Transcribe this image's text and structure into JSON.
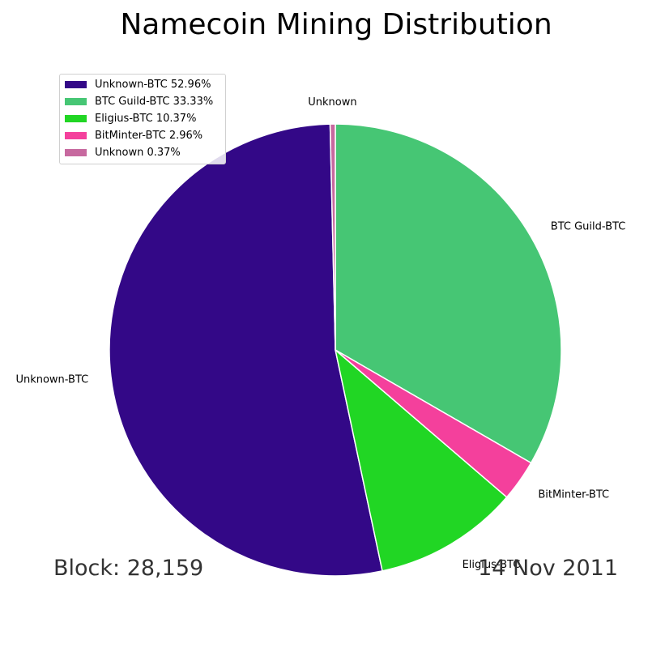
{
  "chart_data": {
    "type": "pie",
    "title": "Namecoin Mining Distribution",
    "slices": [
      {
        "label": "Unknown-BTC",
        "legend": "Unknown-BTC 52.96%",
        "value": 52.96,
        "color": "#330887"
      },
      {
        "label": "BTC Guild-BTC",
        "legend": "BTC Guild-BTC 33.33%",
        "value": 33.33,
        "color": "#46C674"
      },
      {
        "label": "Eligius-BTC",
        "legend": "Eligius-BTC 10.37%",
        "value": 10.37,
        "color": "#21D624"
      },
      {
        "label": "BitMinter-BTC",
        "legend": "BitMinter-BTC 2.96%",
        "value": 2.96,
        "color": "#F4409C"
      },
      {
        "label": "Unknown",
        "legend": "Unknown 0.37%",
        "value": 0.37,
        "color": "#C7699F"
      }
    ],
    "legend_position": "top-left",
    "start": "top",
    "direction": "clockwise for Unknown (0.37%), BTC Guild-BTC, BitMinter-BTC, Eligius-BTC; Unknown-BTC counter-clockwise"
  },
  "footer": {
    "block": "Block: 28,159",
    "date": "14 Nov 2011"
  }
}
